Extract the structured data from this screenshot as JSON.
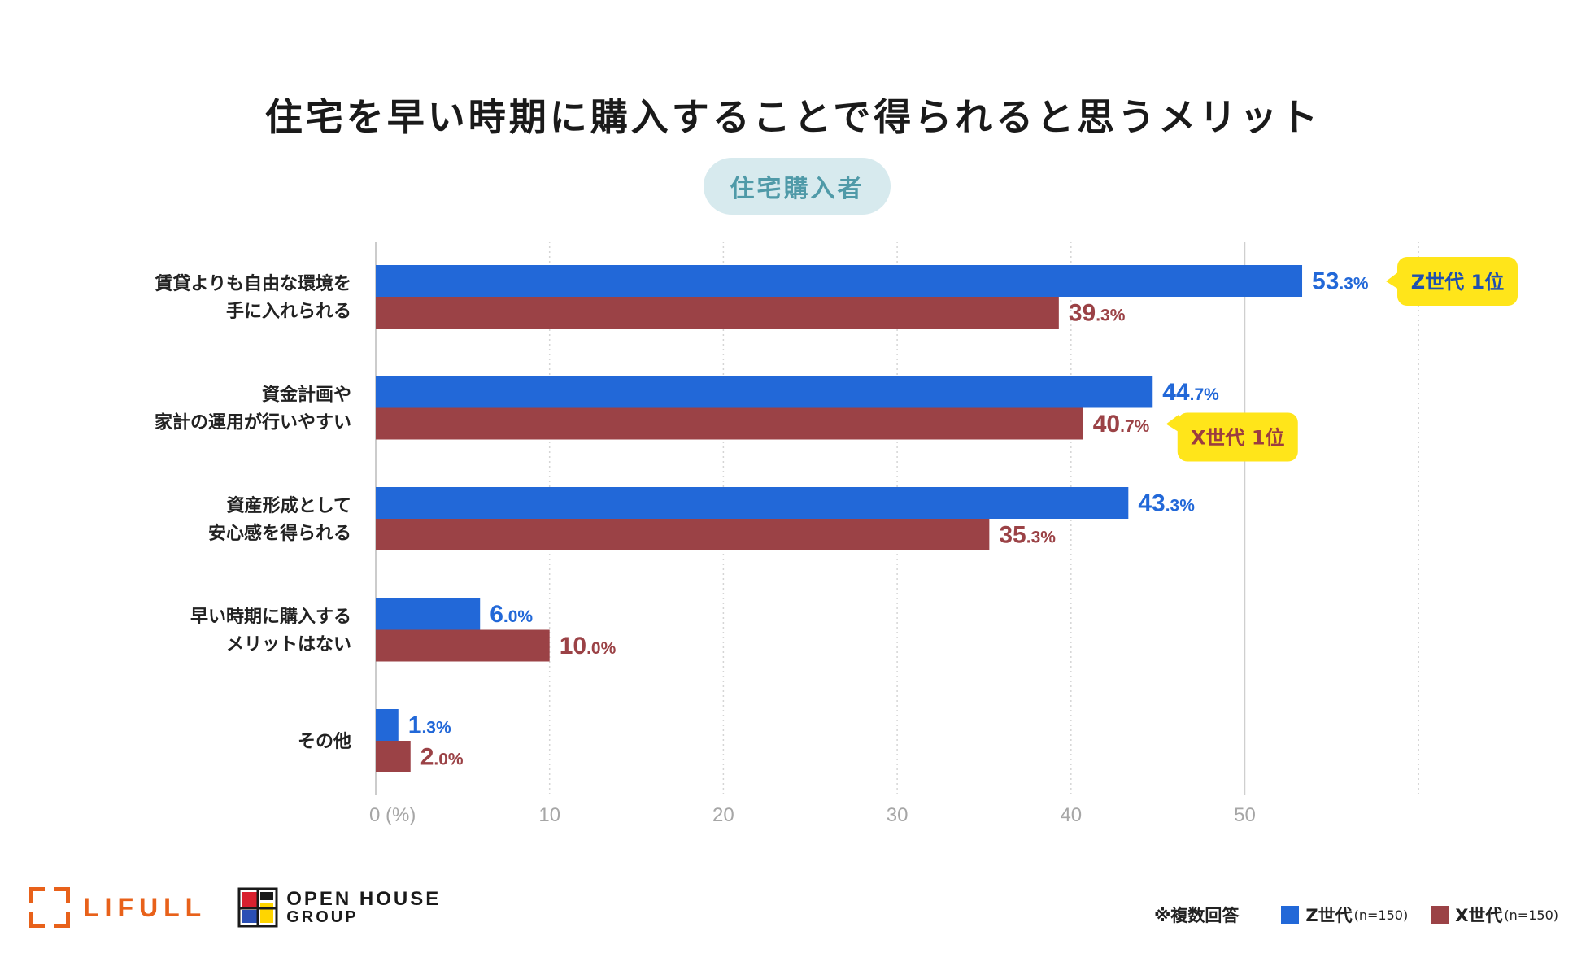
{
  "title": "住宅を早い時期に購入することで得られると思うメリット",
  "subtitle": "住宅購入者",
  "colors": {
    "z": "#2268d8",
    "x": "#9b4246",
    "badge": "#ffe51a",
    "grid": "#cfcfcf",
    "tick": "#a6a6a6"
  },
  "chart_data": {
    "type": "bar",
    "orientation": "horizontal",
    "title": "住宅を早い時期に購入することで得られると思うメリット",
    "subtitle": "住宅購入者",
    "categories": [
      [
        "賃貸よりも自由な環境を",
        "手に入れられる"
      ],
      [
        "資金計画や",
        "家計の運用が行いやすい"
      ],
      [
        "資産形成として",
        "安心感を得られる"
      ],
      [
        "早い時期に購入する",
        "メリットはない"
      ],
      [
        "その他"
      ]
    ],
    "series": [
      {
        "name": "Z世代",
        "n": "(n=150)",
        "values": [
          53.3,
          44.7,
          43.3,
          6.0,
          1.3
        ],
        "color": "#2268d8"
      },
      {
        "name": "X世代",
        "n": "(n=150)",
        "values": [
          39.3,
          40.7,
          35.3,
          10.0,
          2.0
        ],
        "color": "#9b4246"
      }
    ],
    "xlim": [
      0,
      60
    ],
    "xticks": [
      "0 (%)",
      "10",
      "20",
      "30",
      "40",
      "50"
    ],
    "badges": [
      {
        "text": "Z世代 1位",
        "category": 0,
        "series": 0
      },
      {
        "text": "X世代 1位",
        "category": 1,
        "series": 1
      }
    ],
    "note": "※複数回答"
  },
  "logos": {
    "lifull": "LIFULL",
    "openhouse_line1": "OPEN HOUSE",
    "openhouse_line2": "GROUP"
  },
  "legend": {
    "note": "※複数回答",
    "z_label": "Z世代",
    "z_n": "(n=150)",
    "x_label": "X世代",
    "x_n": "(n=150)"
  }
}
